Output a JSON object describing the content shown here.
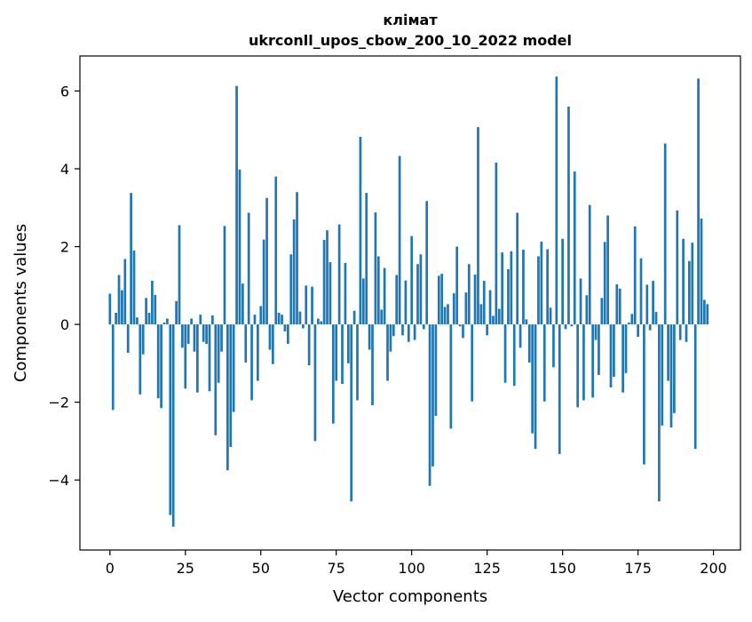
{
  "chart_data": {
    "type": "bar",
    "title_line1": "клімат",
    "title_line2": "ukrconll_upos_cbow_200_10_2022 model",
    "xlabel": "Vector components",
    "ylabel": "Components values",
    "xlim": [
      -9.95,
      208.95
    ],
    "ylim": [
      -5.8,
      6.9
    ],
    "xticks": [
      0,
      25,
      50,
      75,
      100,
      125,
      150,
      175,
      200
    ],
    "yticks": [
      -4,
      -2,
      0,
      2,
      4,
      6
    ],
    "ytick_labels": [
      "−4",
      "−2",
      "0",
      "2",
      "4",
      "6"
    ],
    "bar_color": "#1f77b4",
    "grid": false,
    "values": [
      0.79,
      -2.2,
      0.3,
      1.27,
      0.88,
      1.68,
      -0.73,
      3.38,
      1.9,
      0.18,
      -1.8,
      -0.77,
      0.68,
      0.3,
      1.12,
      0.76,
      -1.9,
      -2.15,
      0.05,
      0.15,
      -4.9,
      -5.2,
      0.6,
      2.55,
      -0.6,
      -1.65,
      -0.5,
      0.15,
      -0.7,
      -1.75,
      0.25,
      -0.45,
      -0.5,
      -1.72,
      0.23,
      -2.85,
      -1.5,
      -0.7,
      2.53,
      -3.75,
      -3.15,
      -2.25,
      6.13,
      3.98,
      1.05,
      -0.98,
      2.87,
      -1.95,
      0.25,
      -1.45,
      0.47,
      2.18,
      3.25,
      -0.65,
      -1.02,
      3.8,
      0.3,
      0.25,
      -0.18,
      -0.5,
      1.8,
      2.7,
      3.4,
      0.33,
      -0.1,
      1.0,
      -1.05,
      0.97,
      -3.0,
      0.15,
      0.08,
      2.17,
      2.42,
      1.6,
      -2.55,
      -1.45,
      2.57,
      -1.53,
      1.58,
      -1.0,
      -4.55,
      0.35,
      -1.95,
      4.82,
      1.18,
      3.38,
      -0.65,
      -2.08,
      2.88,
      1.75,
      0.38,
      1.45,
      -1.45,
      -0.7,
      -0.3,
      1.27,
      4.33,
      -0.28,
      1.13,
      -0.45,
      2.27,
      -0.4,
      1.55,
      1.8,
      -0.12,
      3.17,
      -4.15,
      -3.65,
      -2.35,
      1.25,
      1.3,
      0.45,
      0.52,
      -2.68,
      0.8,
      2.0,
      -0.05,
      -0.35,
      0.82,
      1.55,
      -1.98,
      1.28,
      5.07,
      0.52,
      1.12,
      -0.28,
      0.88,
      0.22,
      4.16,
      0.4,
      1.85,
      -1.5,
      1.42,
      1.88,
      -1.58,
      2.87,
      -0.6,
      1.92,
      0.13,
      -0.98,
      -2.8,
      -3.2,
      1.75,
      2.13,
      -1.98,
      1.93,
      0.43,
      -1.1,
      6.37,
      -3.33,
      2.2,
      -0.12,
      5.6,
      -0.05,
      3.93,
      -2.13,
      1.18,
      -1.95,
      0.75,
      3.07,
      -1.88,
      -0.4,
      -1.3,
      0.68,
      2.12,
      2.8,
      -1.62,
      -1.35,
      1.03,
      0.92,
      -1.75,
      -1.25,
      0.05,
      0.27,
      2.52,
      -0.32,
      1.7,
      -3.6,
      1.02,
      -0.15,
      1.12,
      0.32,
      -4.55,
      -2.6,
      4.65,
      -1.45,
      -2.65,
      -2.28,
      2.93,
      -0.4,
      2.2,
      -0.45,
      1.63,
      2.1,
      -3.2,
      6.32,
      2.72,
      0.63,
      0.52
    ]
  }
}
